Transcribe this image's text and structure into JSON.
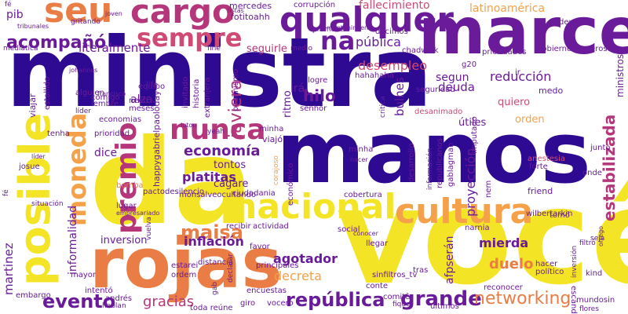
{
  "palette": {
    "dark_purple": "#2d0a91",
    "purple": "#6a1b9a",
    "magenta": "#b5367a",
    "pink": "#cf4a74",
    "orange": "#e97d45",
    "light_orange": "#f4a14a",
    "yellow": "#f3e526"
  },
  "words": [
    {
      "text": "ministra",
      "color": "dark_purple"
    },
    {
      "text": "manos",
      "color": "dark_purple"
    },
    {
      "text": "da",
      "color": "yellow"
    },
    {
      "text": "você",
      "color": "yellow"
    },
    {
      "text": "rojas",
      "color": "orange"
    },
    {
      "text": "marcel",
      "color": "purple"
    },
    {
      "text": "qualquer",
      "color": "purple"
    },
    {
      "text": "cargo",
      "color": "magenta"
    },
    {
      "text": "seu",
      "color": "orange"
    },
    {
      "text": "nacional",
      "color": "yellow"
    },
    {
      "text": "cultura",
      "color": "light_orange"
    },
    {
      "text": "posible",
      "color": "yellow"
    },
    {
      "text": "premio",
      "color": "magenta"
    },
    {
      "text": "moneda",
      "color": "light_orange"
    },
    {
      "text": "nunca",
      "color": "magenta"
    },
    {
      "text": "sempre",
      "color": "pink"
    },
    {
      "text": "acompañó",
      "color": "purple"
    },
    {
      "text": "na",
      "color": "purple"
    },
    {
      "text": "república",
      "color": "purple"
    },
    {
      "text": "grande",
      "color": "purple"
    },
    {
      "text": "networking",
      "color": "orange"
    },
    {
      "text": "evento",
      "color": "purple"
    },
    {
      "text": "maisa",
      "color": "orange"
    },
    {
      "text": "economía",
      "color": "purple"
    },
    {
      "text": "platitas",
      "color": "purple"
    },
    {
      "text": "inflación",
      "color": "purple"
    },
    {
      "text": "gracias",
      "color": "magenta"
    },
    {
      "text": "decreta",
      "color": "light_orange"
    },
    {
      "text": "duelo",
      "color": "orange"
    },
    {
      "text": "mierda",
      "color": "purple"
    },
    {
      "text": "hilo",
      "color": "purple"
    },
    {
      "text": "javiera",
      "color": "magenta"
    },
    {
      "text": "desempleo",
      "color": "pink"
    },
    {
      "text": "deuda",
      "color": "purple"
    },
    {
      "text": "reducción",
      "color": "purple"
    },
    {
      "text": "latinoamérica",
      "color": "light_orange"
    },
    {
      "text": "pública",
      "color": "purple"
    },
    {
      "text": "fallecimiento",
      "color": "pink"
    },
    {
      "text": "literalmente",
      "color": "purple"
    },
    {
      "text": "pib",
      "color": "purple"
    },
    {
      "text": "alza",
      "color": "purple"
    },
    {
      "text": "segun",
      "color": "purple"
    },
    {
      "text": "orden",
      "color": "light_orange"
    },
    {
      "text": "quiero",
      "color": "pink"
    },
    {
      "text": "útiles",
      "color": "purple"
    },
    {
      "text": "proyección",
      "color": "purple"
    },
    {
      "text": "estabilizada",
      "color": "magenta"
    },
    {
      "text": "agotador",
      "color": "purple"
    },
    {
      "text": "martinez",
      "color": "purple"
    },
    {
      "text": "informalidad",
      "color": "purple"
    },
    {
      "text": "inversion",
      "color": "purple"
    },
    {
      "text": "tontos",
      "color": "purple"
    },
    {
      "text": "cagare",
      "color": "purple"
    },
    {
      "text": "dice",
      "color": "purple"
    },
    {
      "text": "mercedes",
      "color": "purple"
    },
    {
      "text": "fotitoahh",
      "color": "purple"
    },
    {
      "text": "corrupción",
      "color": "purple"
    },
    {
      "text": "seguirle",
      "color": "magenta"
    },
    {
      "text": "irá",
      "color": "purple"
    },
    {
      "text": "ritmo",
      "color": "purple"
    },
    {
      "text": "bulnes",
      "color": "purple"
    },
    {
      "text": "afpserán",
      "color": "purple"
    },
    {
      "text": "escándalo",
      "color": "purple"
    },
    {
      "text": "ministros",
      "color": "purple"
    },
    {
      "text": "medo",
      "color": "purple"
    },
    {
      "text": "equipo",
      "color": "purple"
    },
    {
      "text": "comigo",
      "color": "purple"
    },
    {
      "text": "alguien",
      "color": "purple"
    },
    {
      "text": "need",
      "color": "purple"
    },
    {
      "text": "meses",
      "color": "purple"
    },
    {
      "text": "lembre",
      "color": "purple"
    },
    {
      "text": "viajar",
      "color": "purple"
    },
    {
      "text": "economias",
      "color": "purple"
    },
    {
      "text": "prioridad",
      "color": "purple"
    },
    {
      "text": "tenha",
      "color": "purple"
    },
    {
      "text": "happygabrielpaoloday",
      "color": "purple"
    },
    {
      "text": "estallido",
      "color": "purple"
    },
    {
      "text": "historia",
      "color": "purple"
    },
    {
      "text": "invitado",
      "color": "purple"
    },
    {
      "text": "extranjera",
      "color": "purple"
    },
    {
      "text": "pesimismo",
      "color": "purple"
    },
    {
      "text": "logre",
      "color": "purple"
    },
    {
      "text": "senhor",
      "color": "purple"
    },
    {
      "text": "seguridad",
      "color": "purple"
    },
    {
      "text": "hahahaha",
      "color": "purple"
    },
    {
      "text": "desanimado",
      "color": "pink"
    },
    {
      "text": "promover",
      "color": "purple"
    },
    {
      "text": "decimos",
      "color": "purple"
    },
    {
      "text": "prioridades",
      "color": "purple"
    },
    {
      "text": "gobiernoasqueroso",
      "color": "purple"
    },
    {
      "text": "chadwick",
      "color": "purple"
    },
    {
      "text": "deus",
      "color": "purple"
    },
    {
      "text": "fine",
      "color": "purple"
    },
    {
      "text": "viajó",
      "color": "purple"
    },
    {
      "text": "minha",
      "color": "purple"
    },
    {
      "text": "corajoso",
      "color": "light_orange"
    },
    {
      "text": "económico",
      "color": "purple"
    },
    {
      "text": "desarrollo",
      "color": "purple"
    },
    {
      "text": "gablagman",
      "color": "purple"
    },
    {
      "text": "republicanos",
      "color": "purple"
    },
    {
      "text": "información",
      "color": "purple"
    },
    {
      "text": "imputado",
      "color": "purple"
    },
    {
      "text": "anestesia",
      "color": "pink"
    },
    {
      "text": "forte",
      "color": "purple"
    },
    {
      "text": "junto",
      "color": "purple"
    },
    {
      "text": "onde",
      "color": "purple"
    },
    {
      "text": "nem",
      "color": "purple"
    },
    {
      "text": "friend",
      "color": "purple"
    },
    {
      "text": "wilbertarkin",
      "color": "purple"
    },
    {
      "text": "tomó",
      "color": "purple"
    },
    {
      "text": "narnia",
      "color": "purple"
    },
    {
      "text": "cobertura",
      "color": "purple"
    },
    {
      "text": "ciudadania",
      "color": "purple"
    },
    {
      "text": "pactodesilencio",
      "color": "purple"
    },
    {
      "text": "lugar",
      "color": "purple"
    },
    {
      "text": "vuelva",
      "color": "purple"
    },
    {
      "text": "bomba",
      "color": "orange"
    },
    {
      "text": "monsalveocultando",
      "color": "purple"
    },
    {
      "text": "recibir",
      "color": "purple"
    },
    {
      "text": "actividad",
      "color": "purple"
    },
    {
      "text": "social",
      "color": "purple"
    },
    {
      "text": "favor",
      "color": "purple"
    },
    {
      "text": "principales",
      "color": "purple"
    },
    {
      "text": "distancia",
      "color": "purple"
    },
    {
      "text": "estarei",
      "color": "purple"
    },
    {
      "text": "ordem",
      "color": "purple"
    },
    {
      "text": "mayor",
      "color": "purple"
    },
    {
      "text": "não",
      "color": "purple"
    },
    {
      "text": "ideológico",
      "color": "purple"
    },
    {
      "text": "gab",
      "color": "purple"
    },
    {
      "text": "declarar",
      "color": "purple"
    },
    {
      "text": "encuestas",
      "color": "purple"
    },
    {
      "text": "giro",
      "color": "purple"
    },
    {
      "text": "vocero",
      "color": "purple"
    },
    {
      "text": "toda reúne",
      "color": "purple"
    },
    {
      "text": "andrés",
      "color": "purple"
    },
    {
      "text": "intentó",
      "color": "purple"
    },
    {
      "text": "embargo",
      "color": "purple"
    },
    {
      "text": "hablan",
      "color": "purple"
    },
    {
      "text": "tras",
      "color": "purple"
    },
    {
      "text": "llegar",
      "color": "purple"
    },
    {
      "text": "conte",
      "color": "purple"
    },
    {
      "text": "comitê",
      "color": "purple"
    },
    {
      "text": "sinfiltros_tv",
      "color": "purple"
    },
    {
      "text": "fique",
      "color": "purple"
    },
    {
      "text": "reconocer",
      "color": "purple"
    },
    {
      "text": "últimos",
      "color": "purple"
    },
    {
      "text": "hacer",
      "color": "purple"
    },
    {
      "text": "político",
      "color": "purple"
    },
    {
      "text": "inversión",
      "color": "purple"
    },
    {
      "text": "kind",
      "color": "purple"
    },
    {
      "text": "mundosin",
      "color": "purple"
    },
    {
      "text": "flores",
      "color": "purple"
    },
    {
      "text": "filtró",
      "color": "purple"
    },
    {
      "text": "fé",
      "color": "purple"
    },
    {
      "text": "josue",
      "color": "purple"
    },
    {
      "text": "situación",
      "color": "purple"
    },
    {
      "text": "empresariado",
      "color": "purple"
    },
    {
      "text": "líder",
      "color": "purple"
    },
    {
      "text": "mediática",
      "color": "purple"
    },
    {
      "text": "gritando",
      "color": "purple"
    },
    {
      "text": "francisco",
      "color": "purple"
    },
    {
      "text": "critica",
      "color": "purple"
    },
    {
      "text": "g20",
      "color": "purple"
    },
    {
      "text": "listas",
      "color": "purple"
    },
    {
      "text": "yeah",
      "color": "purple"
    },
    {
      "text": "dagamosio",
      "color": "purple"
    },
    {
      "text": "lutou",
      "color": "purple"
    },
    {
      "text": "life",
      "color": "purple"
    },
    {
      "text": "johannes",
      "color": "purple"
    },
    {
      "text": "joven",
      "color": "purple"
    },
    {
      "text": "ir",
      "color": "purple"
    },
    {
      "text": "medio",
      "color": "purple"
    },
    {
      "text": "mantenimiento",
      "color": "purple"
    },
    {
      "text": "tribunales",
      "color": "purple"
    },
    {
      "text": "conocer",
      "color": "purple"
    },
    {
      "text": "nacer",
      "color": "purple"
    },
    {
      "text": "orrego",
      "color": "purple"
    },
    {
      "text": "seja",
      "color": "purple"
    }
  ]
}
